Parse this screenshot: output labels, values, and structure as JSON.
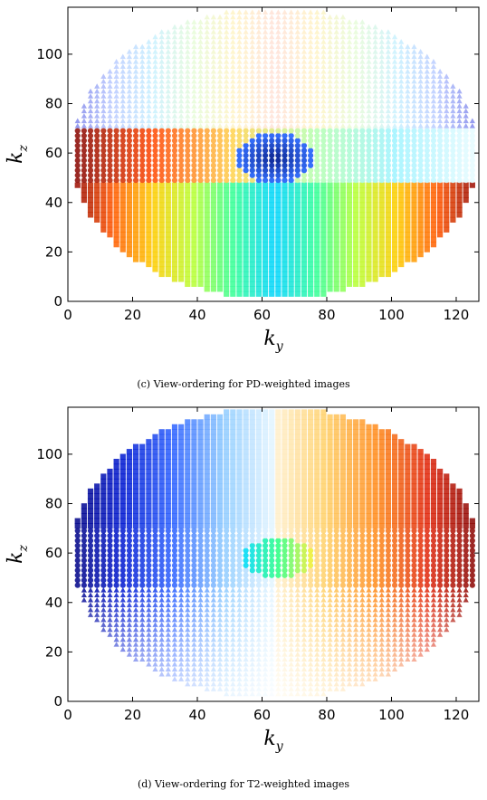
{
  "figures": [
    {
      "caption": "(c) View-ordering for PD-weighted images",
      "chart_data": {
        "type": "scatter",
        "title": "",
        "xlabel": "k_y",
        "ylabel": "k_z",
        "xlim": [
          0,
          127
        ],
        "ylim": [
          0,
          119
        ],
        "xticks": [
          0,
          20,
          40,
          60,
          80,
          100,
          120
        ],
        "yticks": [
          0,
          20,
          40,
          60,
          80,
          100
        ],
        "grid": false,
        "colormap": "jet",
        "description_of_values": "Elliptical k-space sampling region centred at (64, 60) with semi-axes 63 x 59; color encodes acquisition order (jet colormap). Upper band k_z > 70: order increases toward center column (blue) from edges (red). Middle band 49 to 70: red on left, fading rightwards, dark blue blob at center (64, 58). Lower band k_z < 49: cyan at center bottom, grading to red at left and right edges.",
        "ellipse": {
          "center": [
            64,
            60
          ],
          "semi_axes": [
            63,
            59
          ]
        },
        "bands": [
          {
            "name": "upper",
            "kz_range": [
              70,
              119
            ],
            "marker": "triangle",
            "colors": [
              "#ffe0d8",
              "#fff3c4",
              "#e6fbd8",
              "#c8f0ff",
              "#b8c8ff",
              "#7a80e8"
            ]
          },
          {
            "name": "middle",
            "kz_range": [
              49,
              70
            ],
            "marker": "circle",
            "colors": [
              "#7f0000",
              "#ff4500",
              "#ffd24d",
              "#b6ffb0",
              "#9ff3ff",
              "#e8fbff"
            ]
          },
          {
            "name": "lower",
            "kz_range": [
              0,
              49
            ],
            "marker": "square",
            "colors": [
              "#00d4ff",
              "#33ff99",
              "#b8ff33",
              "#ffcc00",
              "#ff5500",
              "#8b0000"
            ]
          }
        ],
        "center_blob": {
          "center": [
            64,
            58
          ],
          "radius": [
            12,
            10
          ],
          "color": "#001a8c"
        }
      }
    },
    {
      "caption": "(d) View-ordering for T2-weighted images",
      "chart_data": {
        "type": "scatter",
        "title": "",
        "xlabel": "k_y",
        "ylabel": "k_z",
        "xlim": [
          0,
          127
        ],
        "ylim": [
          0,
          119
        ],
        "xticks": [
          0,
          20,
          40,
          60,
          80,
          100,
          120
        ],
        "yticks": [
          0,
          20,
          40,
          60,
          80,
          100
        ],
        "grid": false,
        "colormap": "jet",
        "description_of_values": "Elliptical k-space sampling region centred at (64, 60); color encodes acquisition order. Left half blue (dark at edge), right half red/orange (dark at edge), fading toward the center column. A cyan-green-yellow blob at center (65, 58); lower rows fade to near white.",
        "ellipse": {
          "center": [
            64,
            60
          ],
          "semi_axes": [
            63,
            59
          ]
        },
        "left_colors": [
          "#000080",
          "#0018d0",
          "#2b60ff",
          "#8ecbff",
          "#e8f7ff"
        ],
        "right_colors": [
          "#fff0d0",
          "#ffcf66",
          "#ff8a1a",
          "#e0250a",
          "#800000"
        ],
        "center_blob": {
          "center": [
            65,
            58
          ],
          "radius": [
            11,
            8
          ],
          "colors": [
            "#00d8ff",
            "#33ff88",
            "#ffee33"
          ]
        }
      }
    }
  ]
}
